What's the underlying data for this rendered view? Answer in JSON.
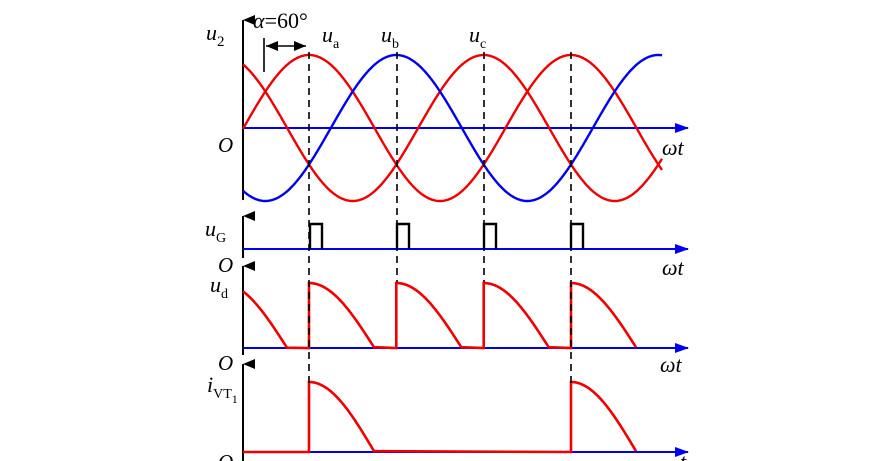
{
  "alpha_label": {
    "symbol": "α",
    "value": "=60°"
  },
  "panels": [
    {
      "id": "u2",
      "y_label": "u",
      "y_sub": "2",
      "origin": "O",
      "x_label": "ωt"
    },
    {
      "id": "uG",
      "y_label": "u",
      "y_sub": "G",
      "origin": "O",
      "x_label": "ωt"
    },
    {
      "id": "ud",
      "y_label": "u",
      "y_sub": "d",
      "origin": "O",
      "x_label": "ωt"
    },
    {
      "id": "ivt1",
      "y_label": "i",
      "y_sub": "VT",
      "y_sub2": "1",
      "origin": "O",
      "x_label": "t"
    }
  ],
  "phase_labels": [
    {
      "name": "u",
      "sub": "a"
    },
    {
      "name": "u",
      "sub": "b"
    },
    {
      "name": "u",
      "sub": "c"
    }
  ],
  "colors": {
    "axis": "#0000ee",
    "red": "#ee0000",
    "blue": "#0000ee",
    "black": "#000000"
  }
}
